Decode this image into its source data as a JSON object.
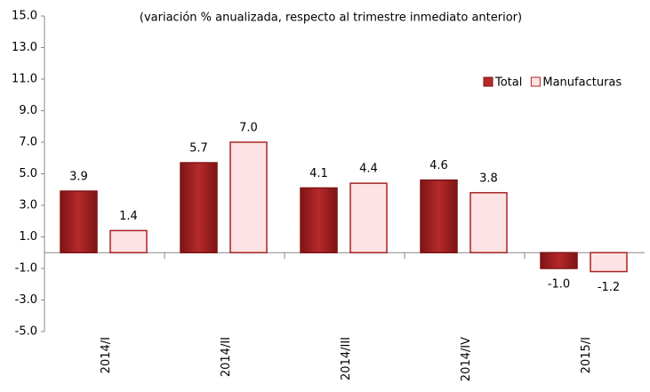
{
  "chart_data": {
    "type": "bar",
    "subtitle": "(variación % anualizada, respecto al trimestre inmediato anterior)",
    "categories": [
      "2014/I",
      "2014/II",
      "2014/III",
      "2014/IV",
      "2015/I"
    ],
    "series": [
      {
        "name": "Total",
        "color": "#b52a2a",
        "values": [
          3.9,
          5.7,
          4.1,
          4.6,
          -1.0
        ],
        "value_labels": [
          "3.9",
          "5.7",
          "4.1",
          "4.6",
          "-1.0"
        ]
      },
      {
        "name": "Manufacturas",
        "color": "#fde3e3",
        "values": [
          1.4,
          7.0,
          4.4,
          3.8,
          -1.2
        ],
        "value_labels": [
          "1.4",
          "7.0",
          "4.4",
          "3.8",
          "-1.2"
        ]
      }
    ],
    "ylim": [
      -5,
      15
    ],
    "yticks": [
      {
        "value": -5,
        "label": "-5.0"
      },
      {
        "value": -3,
        "label": "-3.0"
      },
      {
        "value": -1,
        "label": "-1.0"
      },
      {
        "value": 1,
        "label": "1.0"
      },
      {
        "value": 3,
        "label": "3.0"
      },
      {
        "value": 5,
        "label": "5.0"
      },
      {
        "value": 7,
        "label": "7.0"
      },
      {
        "value": 9,
        "label": "9.0"
      },
      {
        "value": 11,
        "label": "11.0"
      },
      {
        "value": 13,
        "label": "13.0"
      },
      {
        "value": 15,
        "label": "15.0"
      }
    ],
    "legend": "upper right"
  }
}
